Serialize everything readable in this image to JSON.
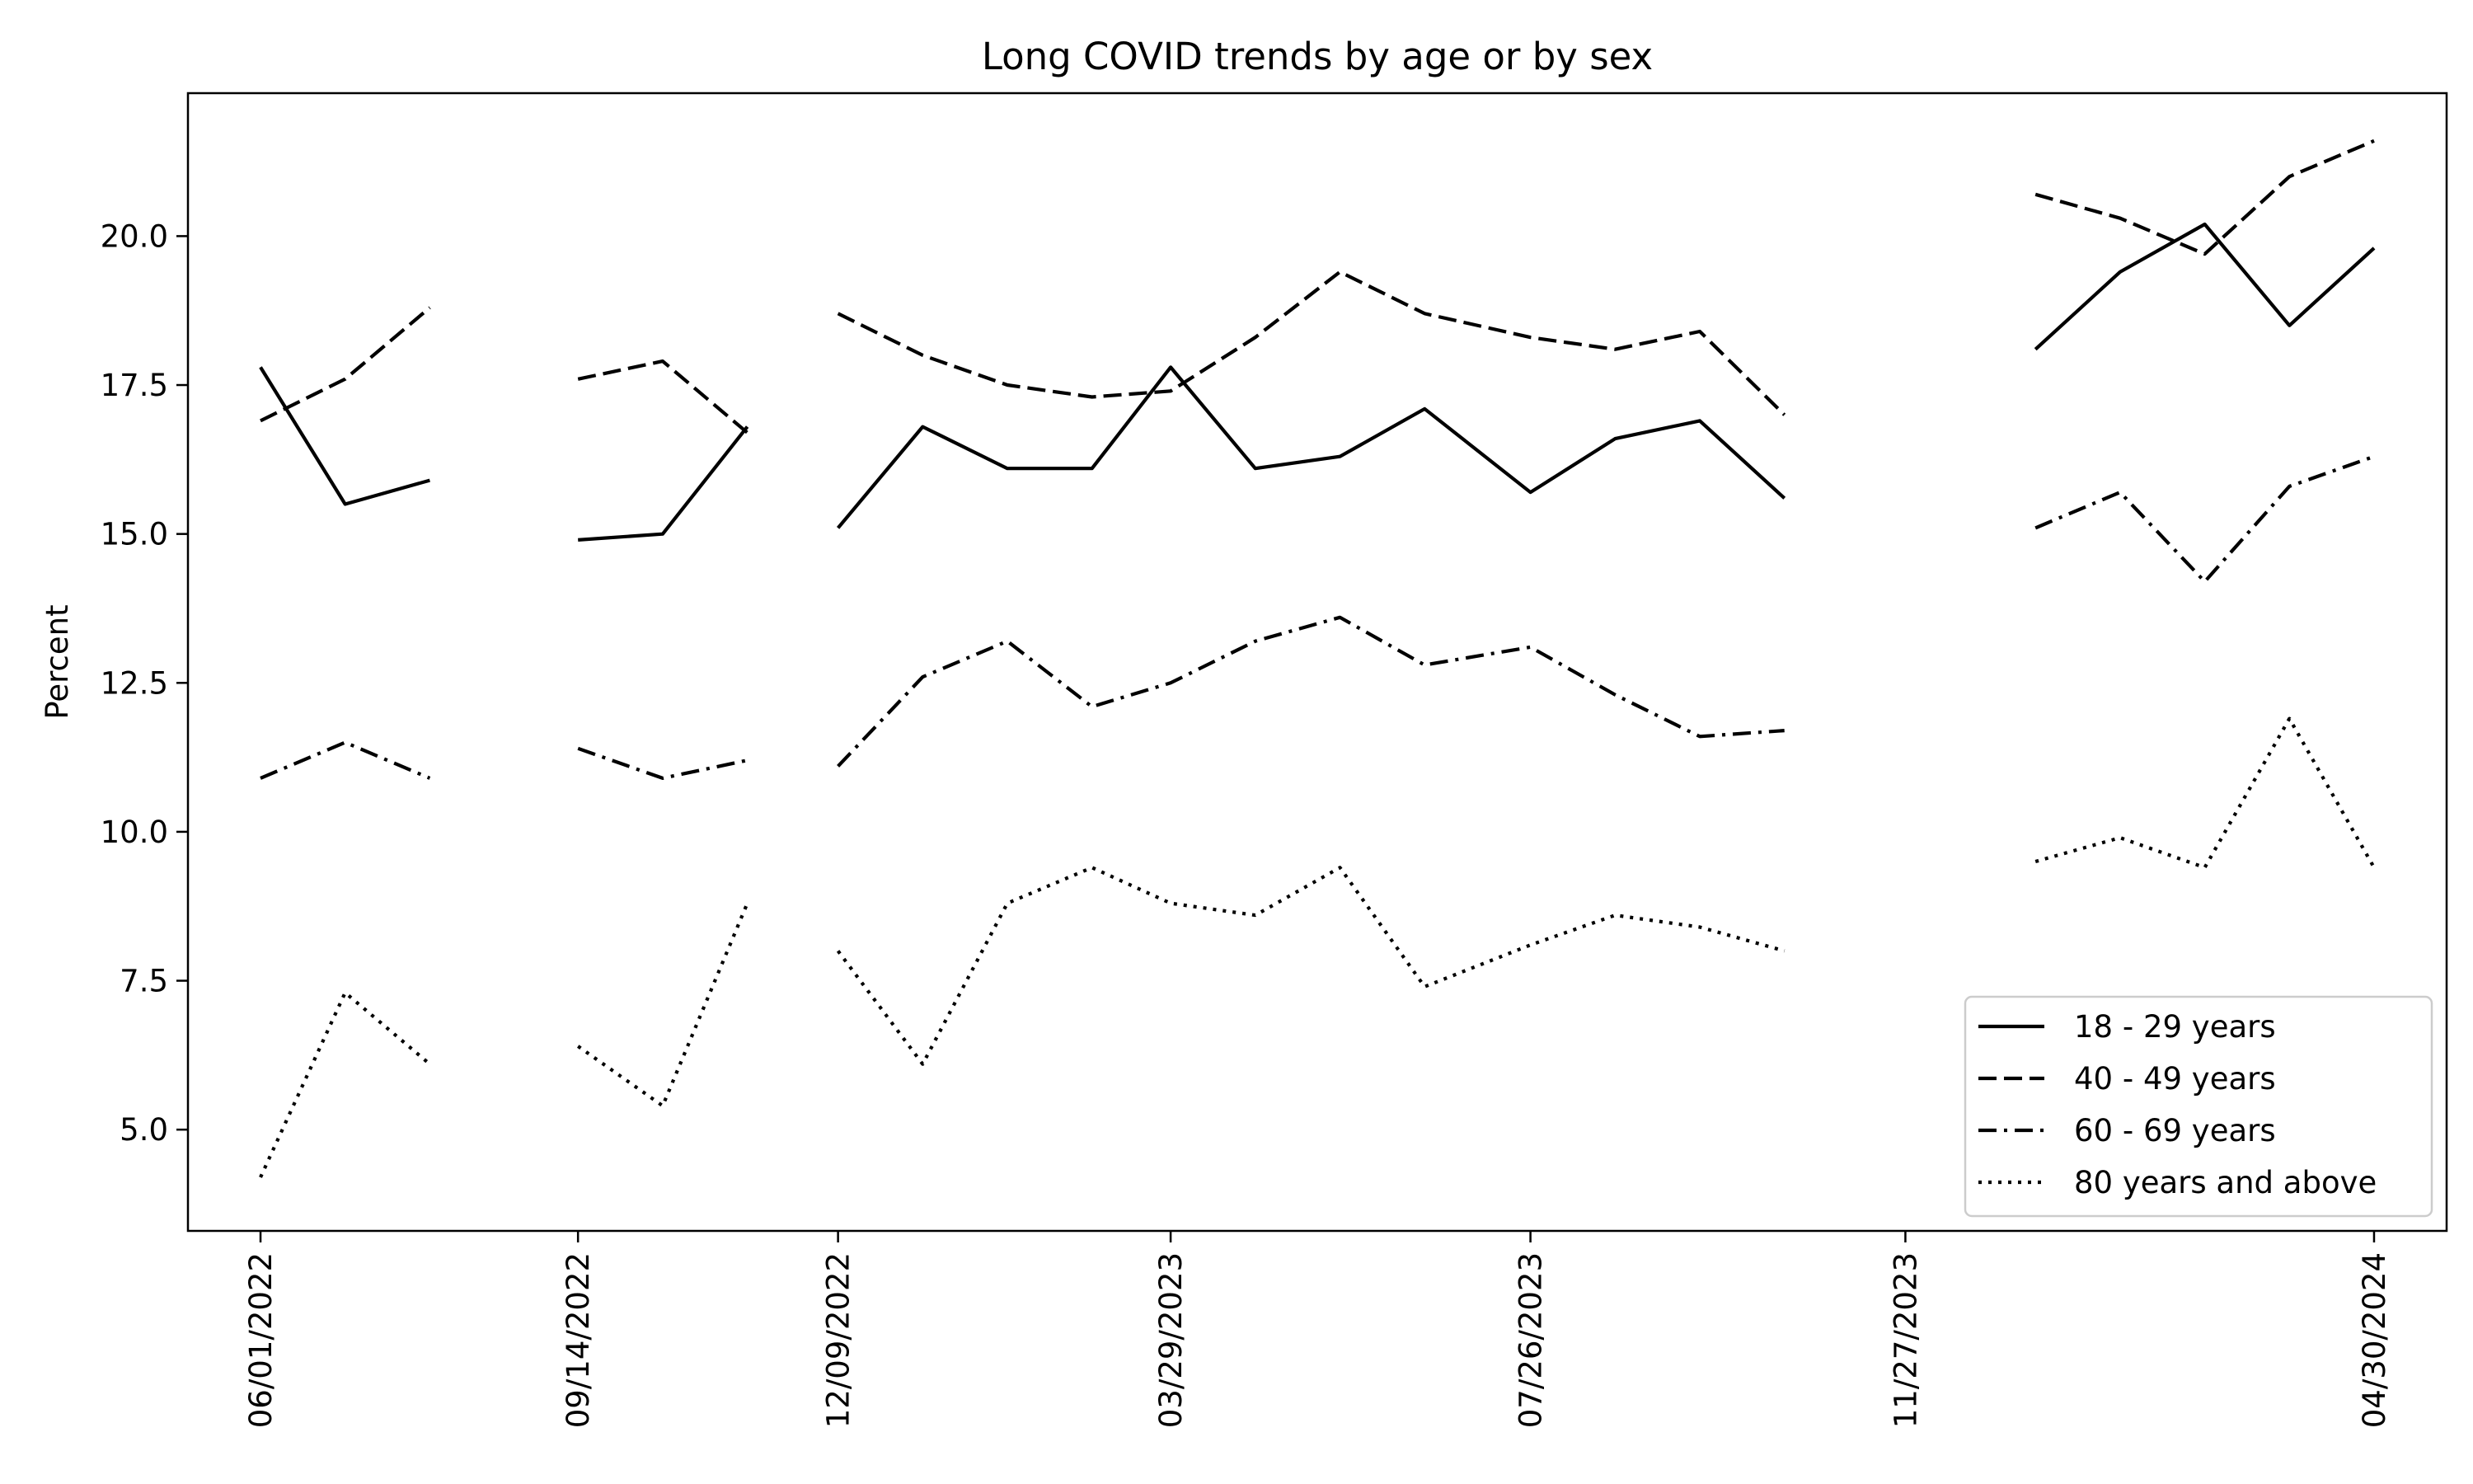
{
  "chart_data": {
    "type": "line",
    "title": "Long COVID trends by age or by sex",
    "xlabel": "",
    "ylabel": "Percent",
    "ylim": [
      3.3,
      22.4
    ],
    "xlim": [
      "05/08/2022",
      "05/24/2024"
    ],
    "grid": false,
    "legend_position": "lower-right",
    "x_ticks": [
      "06/01/2022",
      "09/14/2022",
      "12/09/2022",
      "03/29/2023",
      "07/26/2023",
      "11/27/2023",
      "04/30/2024"
    ],
    "y_ticks": [
      "5.0",
      "7.5",
      "10.0",
      "12.5",
      "15.0",
      "17.5",
      "20.0"
    ],
    "x": [
      "06/01/2022",
      "06/29/2022",
      "07/27/2022",
      "09/14/2022",
      "10/12/2022",
      "11/09/2022",
      "12/09/2022",
      "01/06/2023",
      "02/03/2023",
      "03/03/2023",
      "03/29/2023",
      "04/26/2023",
      "05/24/2023",
      "06/21/2023",
      "07/26/2023",
      "08/23/2023",
      "09/20/2023",
      "10/18/2023",
      "01/09/2024",
      "02/06/2024",
      "03/05/2024",
      "04/02/2024",
      "04/30/2024"
    ],
    "series": [
      {
        "name": "18 - 29 years",
        "dash": "solid",
        "values": [
          17.8,
          15.5,
          15.9,
          14.9,
          15.0,
          16.8,
          15.1,
          16.8,
          16.1,
          16.1,
          17.8,
          16.1,
          16.3,
          17.1,
          15.7,
          16.6,
          16.9,
          15.6,
          18.1,
          19.4,
          20.2,
          18.5,
          19.8
        ]
      },
      {
        "name": "40 - 49 years",
        "dash": "dashed",
        "values": [
          16.9,
          17.6,
          18.8,
          17.6,
          17.9,
          16.7,
          18.7,
          18.0,
          17.5,
          17.3,
          17.4,
          18.3,
          19.4,
          18.7,
          18.3,
          18.1,
          18.4,
          17.0,
          20.7,
          20.3,
          19.7,
          21.0,
          21.6
        ]
      },
      {
        "name": "60 - 69 years",
        "dash": "dashdot",
        "values": [
          10.9,
          11.5,
          10.9,
          11.4,
          10.9,
          11.2,
          11.1,
          12.6,
          13.2,
          12.1,
          12.5,
          13.2,
          13.6,
          12.8,
          13.1,
          12.3,
          11.6,
          11.7,
          15.1,
          15.7,
          14.2,
          15.8,
          16.3
        ]
      },
      {
        "name": "80 years and above",
        "dash": "dotted",
        "values": [
          4.2,
          7.3,
          6.1,
          6.4,
          5.4,
          8.8,
          8.0,
          6.1,
          8.8,
          9.4,
          8.8,
          8.6,
          9.4,
          7.4,
          8.1,
          8.6,
          8.4,
          8.0,
          9.5,
          9.9,
          9.4,
          11.9,
          9.4
        ]
      }
    ],
    "segments": [
      [
        0,
        2
      ],
      [
        3,
        5
      ],
      [
        6,
        17
      ],
      [
        18,
        22
      ]
    ]
  },
  "colors": {
    "line": "#000000",
    "background": "#ffffff",
    "legend_border": "#cccccc"
  }
}
